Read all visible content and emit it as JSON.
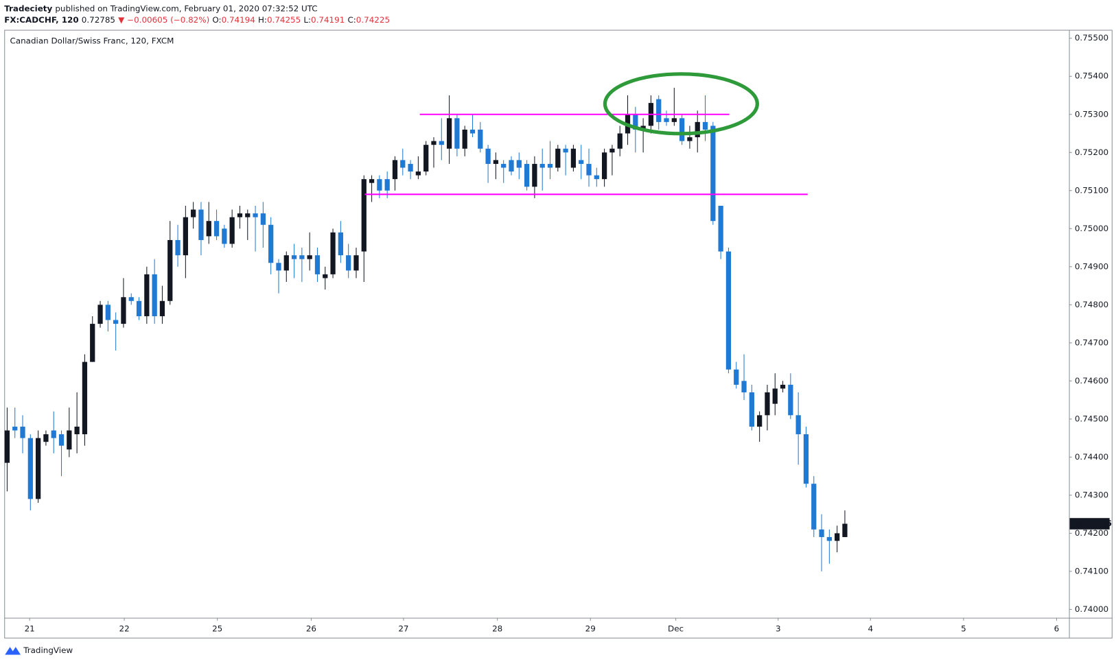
{
  "header": {
    "author": "Tradeciety",
    "published": "published on TradingView.com, February 01, 2020 07:32:52 UTC",
    "symbol": "FX:CADCHF, 120",
    "price": "0.72785",
    "change": "▼ −0.00605 (−0.82%)",
    "o_label": "O:",
    "o": "0.74194",
    "h_label": "H:",
    "h": "0.74255",
    "l_label": "L:",
    "l": "0.74191",
    "c_label": "C:",
    "c": "0.74225"
  },
  "footer": {
    "brand": "TradingView"
  },
  "chart_data": {
    "type": "candlestick",
    "title": "Canadian Dollar/Swiss Franc, 120, FXCM",
    "up_color": "#131722",
    "down_color": "#2079d2",
    "open": [
      0.74385,
      0.7448,
      0.7448,
      0.7445,
      0.7429,
      0.7444,
      0.7447,
      0.7446,
      0.7442,
      0.7446,
      0.7446,
      0.7465,
      0.7475,
      0.748,
      0.7476,
      0.7475,
      0.7482,
      0.7481,
      0.7477,
      0.7488,
      0.7477,
      0.7481,
      0.7497,
      0.7493,
      0.7503,
      0.7505,
      0.7498,
      0.7502,
      0.75,
      0.7496,
      0.7503,
      0.7503,
      0.7504,
      0.7504,
      0.7501,
      0.7491,
      0.7489,
      0.7493,
      0.7493,
      0.7492,
      0.7493,
      0.7487,
      0.7488,
      0.7499,
      0.7493,
      0.7489,
      0.7494,
      0.7512,
      0.7513,
      0.7513,
      0.7513,
      0.7518,
      0.7517,
      0.7514,
      0.7515,
      0.7522,
      0.7523,
      0.7521,
      0.7529,
      0.7521,
      0.7526,
      0.7526,
      0.7521,
      0.7517,
      0.7517,
      0.7518,
      0.7518,
      0.7517,
      0.7511,
      0.7517,
      0.7517,
      0.7516,
      0.7521,
      0.7516,
      0.7518,
      0.7517,
      0.7514,
      0.7513,
      0.752,
      0.7521,
      0.7525,
      0.753,
      0.7526,
      0.7527,
      0.7534,
      0.7529,
      0.7528,
      0.7529,
      0.7523,
      0.7524,
      0.7528,
      0.7527,
      0.7506,
      0.7494,
      0.7463,
      0.746,
      0.7457,
      0.7448,
      0.7451,
      0.7454,
      0.7458,
      0.7459,
      0.7451,
      0.7446,
      0.7433,
      0.7421,
      0.7419,
      0.7418,
      0.7419
    ],
    "high": [
      0.7453,
      0.7453,
      0.7451,
      0.7446,
      0.7447,
      0.7447,
      0.7452,
      0.7447,
      0.7453,
      0.7457,
      0.7467,
      0.7477,
      0.7481,
      0.7481,
      0.7478,
      0.7487,
      0.7483,
      0.7482,
      0.749,
      0.7492,
      0.7485,
      0.7502,
      0.7501,
      0.7506,
      0.7507,
      0.7507,
      0.7507,
      0.7505,
      0.7501,
      0.7505,
      0.7506,
      0.7505,
      0.7506,
      0.7507,
      0.7503,
      0.7492,
      0.7494,
      0.7496,
      0.7495,
      0.7499,
      0.7495,
      0.749,
      0.75,
      0.7502,
      0.7496,
      0.7495,
      0.7514,
      0.7514,
      0.7514,
      0.7515,
      0.7519,
      0.7521,
      0.7518,
      0.7519,
      0.7523,
      0.7524,
      0.7529,
      0.7535,
      0.753,
      0.7527,
      0.753,
      0.7528,
      0.7522,
      0.752,
      0.7518,
      0.7519,
      0.752,
      0.7518,
      0.7519,
      0.7521,
      0.7523,
      0.7522,
      0.7522,
      0.7522,
      0.7522,
      0.7521,
      0.7516,
      0.7521,
      0.7522,
      0.7527,
      0.7535,
      0.7532,
      0.7529,
      0.7535,
      0.7535,
      0.7531,
      0.7537,
      0.753,
      0.7527,
      0.7531,
      0.7535,
      0.7528,
      0.7506,
      0.7495,
      0.7465,
      0.7467,
      0.7459,
      0.7452,
      0.7459,
      0.7462,
      0.746,
      0.7462,
      0.7457,
      0.7448,
      0.7435,
      0.7425,
      0.7421,
      0.7422,
      0.7426
    ],
    "low": [
      0.7431,
      0.7445,
      0.7441,
      0.7426,
      0.7428,
      0.7443,
      0.7441,
      0.7435,
      0.744,
      0.7441,
      0.7443,
      0.7465,
      0.7474,
      0.7473,
      0.7468,
      0.7474,
      0.748,
      0.7476,
      0.7475,
      0.7475,
      0.7475,
      0.748,
      0.749,
      0.7487,
      0.75,
      0.7493,
      0.7496,
      0.7497,
      0.7495,
      0.7495,
      0.75,
      0.7497,
      0.7494,
      0.7495,
      0.7488,
      0.7483,
      0.7486,
      0.7487,
      0.7486,
      0.7489,
      0.7486,
      0.7484,
      0.7487,
      0.7491,
      0.7487,
      0.7487,
      0.7486,
      0.7507,
      0.7508,
      0.7508,
      0.751,
      0.7514,
      0.7513,
      0.7513,
      0.7514,
      0.7516,
      0.7518,
      0.7517,
      0.7519,
      0.7519,
      0.7524,
      0.752,
      0.7512,
      0.7513,
      0.7512,
      0.7514,
      0.7513,
      0.751,
      0.7508,
      0.751,
      0.7513,
      0.7515,
      0.7514,
      0.7515,
      0.7513,
      0.7511,
      0.7511,
      0.7511,
      0.7514,
      0.7519,
      0.7522,
      0.752,
      0.752,
      0.7525,
      0.7526,
      0.7527,
      0.7527,
      0.7522,
      0.7521,
      0.752,
      0.7523,
      0.7501,
      0.7492,
      0.7462,
      0.7458,
      0.7455,
      0.7447,
      0.7444,
      0.7447,
      0.7451,
      0.7457,
      0.745,
      0.7438,
      0.7432,
      0.7419,
      0.741,
      0.7412,
      0.7415,
      0.7419
    ],
    "close": [
      0.7447,
      0.7447,
      0.7445,
      0.7429,
      0.7445,
      0.7446,
      0.7445,
      0.7443,
      0.7447,
      0.7448,
      0.7465,
      0.7475,
      0.748,
      0.7476,
      0.7475,
      0.7482,
      0.7481,
      0.7477,
      0.7488,
      0.7477,
      0.7481,
      0.7497,
      0.7493,
      0.7503,
      0.7505,
      0.7497,
      0.7502,
      0.7498,
      0.7496,
      0.7503,
      0.7504,
      0.7504,
      0.7503,
      0.7501,
      0.7491,
      0.7489,
      0.7493,
      0.7492,
      0.7492,
      0.7493,
      0.7488,
      0.7488,
      0.7499,
      0.7493,
      0.7489,
      0.7493,
      0.7513,
      0.7513,
      0.751,
      0.751,
      0.7518,
      0.7516,
      0.7515,
      0.7515,
      0.7522,
      0.7523,
      0.7522,
      0.7529,
      0.7521,
      0.7526,
      0.7525,
      0.7521,
      0.7517,
      0.7518,
      0.7516,
      0.7515,
      0.7516,
      0.7511,
      0.7517,
      0.7516,
      0.7516,
      0.7521,
      0.752,
      0.7521,
      0.7517,
      0.7514,
      0.7513,
      0.752,
      0.7521,
      0.7525,
      0.753,
      0.7526,
      0.7527,
      0.7533,
      0.7528,
      0.7528,
      0.7529,
      0.7523,
      0.7524,
      0.7528,
      0.7526,
      0.7502,
      0.7494,
      0.7463,
      0.7459,
      0.7457,
      0.7448,
      0.7451,
      0.7457,
      0.7458,
      0.7459,
      0.7451,
      0.7446,
      0.7433,
      0.7421,
      0.7419,
      0.7418,
      0.742,
      0.74225
    ],
    "last_price": 0.74225,
    "levels": [
      {
        "value": 0.753,
        "x": [
          53.2,
          93.1
        ],
        "color": "#ff00ff"
      },
      {
        "value": 0.7509,
        "x": [
          46.1,
          103.2
        ],
        "color": "#ff00ff"
      }
    ],
    "xlim": [
      -0.28,
      136.9
    ],
    "xticks": [
      {
        "value": 2.9,
        "label": "21"
      },
      {
        "value": 15.1,
        "label": "22"
      },
      {
        "value": 27.1,
        "label": "25"
      },
      {
        "value": 39.2,
        "label": "26"
      },
      {
        "value": 51.1,
        "label": "27"
      },
      {
        "value": 63.2,
        "label": "28"
      },
      {
        "value": 75.2,
        "label": "29"
      },
      {
        "value": 86.2,
        "label": "Dec"
      },
      {
        "value": 99.4,
        "label": "3"
      },
      {
        "value": 111.3,
        "label": "4"
      },
      {
        "value": 123.3,
        "label": "5"
      },
      {
        "value": 135.3,
        "label": "6"
      }
    ],
    "ylim": [
      0.73978,
      0.75522
    ],
    "yticks": [
      {
        "value": 0.74,
        "label": "0.74000"
      },
      {
        "value": 0.741,
        "label": "0.74100"
      },
      {
        "value": 0.742,
        "label": "0.74200"
      },
      {
        "value": 0.743,
        "label": "0.74300"
      },
      {
        "value": 0.744,
        "label": "0.74400"
      },
      {
        "value": 0.745,
        "label": "0.74500"
      },
      {
        "value": 0.746,
        "label": "0.74600"
      },
      {
        "value": 0.747,
        "label": "0.74700"
      },
      {
        "value": 0.748,
        "label": "0.74800"
      },
      {
        "value": 0.749,
        "label": "0.74900"
      },
      {
        "value": 0.75,
        "label": "0.75000"
      },
      {
        "value": 0.751,
        "label": "0.75100"
      },
      {
        "value": 0.752,
        "label": "0.75200"
      },
      {
        "value": 0.753,
        "label": "0.75300"
      },
      {
        "value": 0.754,
        "label": "0.75400"
      },
      {
        "value": 0.755,
        "label": "0.75500"
      }
    ]
  }
}
